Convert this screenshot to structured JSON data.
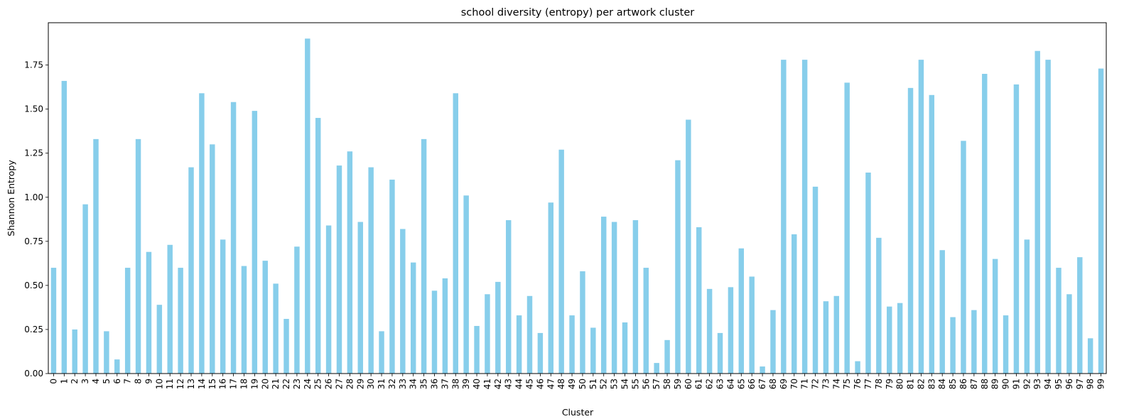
{
  "chart_data": {
    "type": "bar",
    "title": "school diversity (entropy) per artwork cluster",
    "xlabel": "Cluster",
    "ylabel": "Shannon Entropy",
    "ylim": [
      0,
      1.99
    ],
    "yticks": [
      "0.00",
      "0.25",
      "0.50",
      "0.75",
      "1.00",
      "1.25",
      "1.50",
      "1.75"
    ],
    "grid": false,
    "legend": "none",
    "bar_color": "#87ceeb",
    "categories": [
      "0",
      "1",
      "2",
      "3",
      "4",
      "5",
      "6",
      "7",
      "8",
      "9",
      "10",
      "11",
      "12",
      "13",
      "14",
      "15",
      "16",
      "17",
      "18",
      "19",
      "20",
      "21",
      "22",
      "23",
      "24",
      "25",
      "26",
      "27",
      "28",
      "29",
      "30",
      "31",
      "32",
      "33",
      "34",
      "35",
      "36",
      "37",
      "38",
      "39",
      "40",
      "41",
      "42",
      "43",
      "44",
      "45",
      "46",
      "47",
      "48",
      "49",
      "50",
      "51",
      "52",
      "53",
      "54",
      "55",
      "56",
      "57",
      "58",
      "59",
      "60",
      "61",
      "62",
      "63",
      "64",
      "65",
      "66",
      "67",
      "68",
      "69",
      "70",
      "71",
      "72",
      "73",
      "74",
      "75",
      "76",
      "77",
      "78",
      "79",
      "80",
      "81",
      "82",
      "83",
      "84",
      "85",
      "86",
      "87",
      "88",
      "89",
      "90",
      "91",
      "92",
      "93",
      "94",
      "95",
      "96",
      "97",
      "98",
      "99"
    ],
    "values": [
      0.6,
      1.66,
      0.25,
      0.96,
      1.33,
      0.24,
      0.08,
      0.6,
      1.33,
      0.69,
      0.39,
      0.73,
      0.6,
      1.17,
      1.59,
      1.3,
      0.76,
      1.54,
      0.61,
      1.49,
      0.64,
      0.51,
      0.31,
      0.72,
      1.9,
      1.45,
      0.84,
      1.18,
      1.26,
      0.86,
      1.17,
      0.24,
      1.1,
      0.82,
      0.63,
      1.33,
      0.47,
      0.54,
      1.59,
      1.01,
      0.27,
      0.45,
      0.52,
      0.87,
      0.33,
      0.44,
      0.23,
      0.97,
      1.27,
      0.33,
      0.58,
      0.26,
      0.89,
      0.86,
      0.29,
      0.87,
      0.6,
      0.06,
      0.19,
      1.21,
      1.44,
      0.83,
      0.48,
      0.23,
      0.49,
      0.71,
      0.55,
      0.04,
      0.36,
      1.78,
      0.79,
      1.78,
      1.06,
      0.41,
      0.44,
      1.65,
      0.07,
      1.14,
      0.77,
      0.38,
      0.4,
      1.62,
      1.78,
      1.58,
      0.7,
      0.32,
      1.32,
      0.36,
      1.7,
      0.65,
      0.33,
      1.64,
      0.76,
      1.83,
      1.78,
      0.6,
      0.45,
      0.66,
      0.2,
      1.73
    ]
  }
}
